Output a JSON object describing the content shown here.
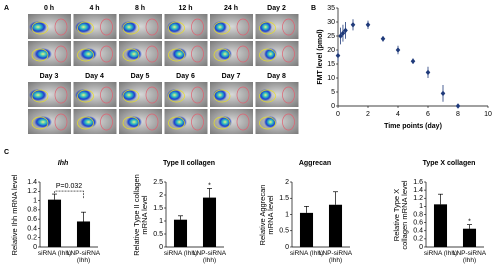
{
  "panel_labels": [
    "A",
    "B",
    "C"
  ],
  "image_panel": {
    "labels": [
      "0 h",
      "4 h",
      "8 h",
      "12 h",
      "24 h",
      "Day 2",
      "Day 3",
      "Day 4",
      "Day 5",
      "Day 6",
      "Day 7",
      "Day 8"
    ]
  },
  "chart_data": [
    {
      "type": "scatter",
      "ylabel": "FMT level (pmol)",
      "xlabel": "Time points (day)",
      "x": [
        0,
        0.17,
        0.33,
        0.5,
        1,
        2,
        3,
        4,
        5,
        6,
        7,
        8
      ],
      "values": [
        18,
        25,
        26,
        27,
        29,
        29,
        24,
        20,
        16,
        12,
        4.5,
        0
      ],
      "errors": [
        2,
        3,
        3,
        3,
        2,
        1.5,
        1,
        1.5,
        1,
        2,
        3,
        0
      ],
      "color": "#1f3a7a",
      "xlim": [
        0,
        10
      ],
      "xticks": [
        0,
        2,
        4,
        6,
        8,
        10
      ],
      "ylim": [
        0,
        35
      ],
      "yticks": [
        0,
        5,
        10,
        15,
        20,
        25,
        30,
        35
      ]
    },
    {
      "type": "bar",
      "title": "Ihh",
      "ylabel": "Relative Ihh mRNA level",
      "categories": [
        "siRNA (Ihh)",
        "LNP-siRNA (Ihh)"
      ],
      "values": [
        1.02,
        0.55
      ],
      "errors": [
        0.12,
        0.2
      ],
      "color": "#000000",
      "ylim": [
        0,
        1.4
      ],
      "yticks": [
        0,
        0.2,
        0.4,
        0.6,
        0.8,
        1,
        1.2,
        1.4
      ],
      "annotation": "P=0.032"
    },
    {
      "type": "bar",
      "title": "Type II collagen",
      "ylabel": "Relative Type II collagen mRNA level",
      "categories": [
        "siRNA (Ihh)",
        "LNP-siRNA (Ihh)"
      ],
      "values": [
        1.05,
        1.9
      ],
      "errors": [
        0.15,
        0.35
      ],
      "color": "#000000",
      "ylim": [
        0,
        2.5
      ],
      "yticks": [
        0,
        0.5,
        1,
        1.5,
        2,
        2.5
      ],
      "annotation": "*"
    },
    {
      "type": "bar",
      "title": "Aggrecan",
      "ylabel": "Relative Aggrecan mRNA level",
      "categories": [
        "siRNA (Ihh)",
        "LNP-siRNA (Ihh)"
      ],
      "values": [
        1.05,
        1.3
      ],
      "errors": [
        0.2,
        0.4
      ],
      "color": "#000000",
      "ylim": [
        0,
        2
      ],
      "yticks": [
        0,
        0.5,
        1,
        1.5,
        2
      ]
    },
    {
      "type": "bar",
      "title": "Type X collagen",
      "ylabel": "Relative Type X collagen mRNA level",
      "categories": [
        "siRNA (Ihh)",
        "LNP-siRNA (Ihh)"
      ],
      "values": [
        1.05,
        0.45
      ],
      "errors": [
        0.25,
        0.1
      ],
      "color": "#000000",
      "ylim": [
        0,
        1.6
      ],
      "yticks": [
        0,
        0.2,
        0.4,
        0.6,
        0.8,
        1,
        1.2,
        1.4,
        1.6
      ],
      "annotation": "*"
    }
  ]
}
